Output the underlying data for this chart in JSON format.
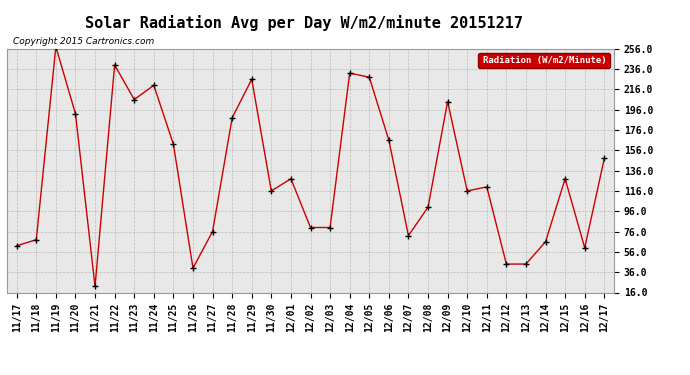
{
  "title": "Solar Radiation Avg per Day W/m2/minute 20151217",
  "copyright": "Copyright 2015 Cartronics.com",
  "legend_label": "Radiation (W/m2/Minute)",
  "background_color": "#ffffff",
  "plot_bg_color": "#e8e8e8",
  "line_color": "#cc0000",
  "marker_color": "#000000",
  "legend_bg": "#cc0000",
  "legend_text_color": "#ffffff",
  "dates": [
    "11/17",
    "11/18",
    "11/19",
    "11/20",
    "11/21",
    "11/22",
    "11/23",
    "11/24",
    "11/25",
    "11/26",
    "11/27",
    "11/28",
    "11/29",
    "11/30",
    "12/01",
    "12/02",
    "12/03",
    "12/04",
    "12/05",
    "12/06",
    "12/07",
    "12/08",
    "12/09",
    "12/10",
    "12/11",
    "12/12",
    "12/13",
    "12/14",
    "12/15",
    "12/16",
    "12/17"
  ],
  "values": [
    62,
    68,
    258,
    192,
    22,
    240,
    206,
    220,
    162,
    40,
    76,
    188,
    226,
    116,
    128,
    80,
    80,
    232,
    228,
    166,
    72,
    100,
    204,
    116,
    120,
    44,
    44,
    66,
    128,
    60,
    148
  ],
  "ylim_min": 16.0,
  "ylim_max": 256.0,
  "yticks": [
    16.0,
    36.0,
    56.0,
    76.0,
    96.0,
    116.0,
    136.0,
    156.0,
    176.0,
    196.0,
    216.0,
    236.0,
    256.0
  ],
  "grid_color": "#bbbbbb",
  "title_fontsize": 11,
  "tick_fontsize": 7,
  "copyright_fontsize": 6.5
}
